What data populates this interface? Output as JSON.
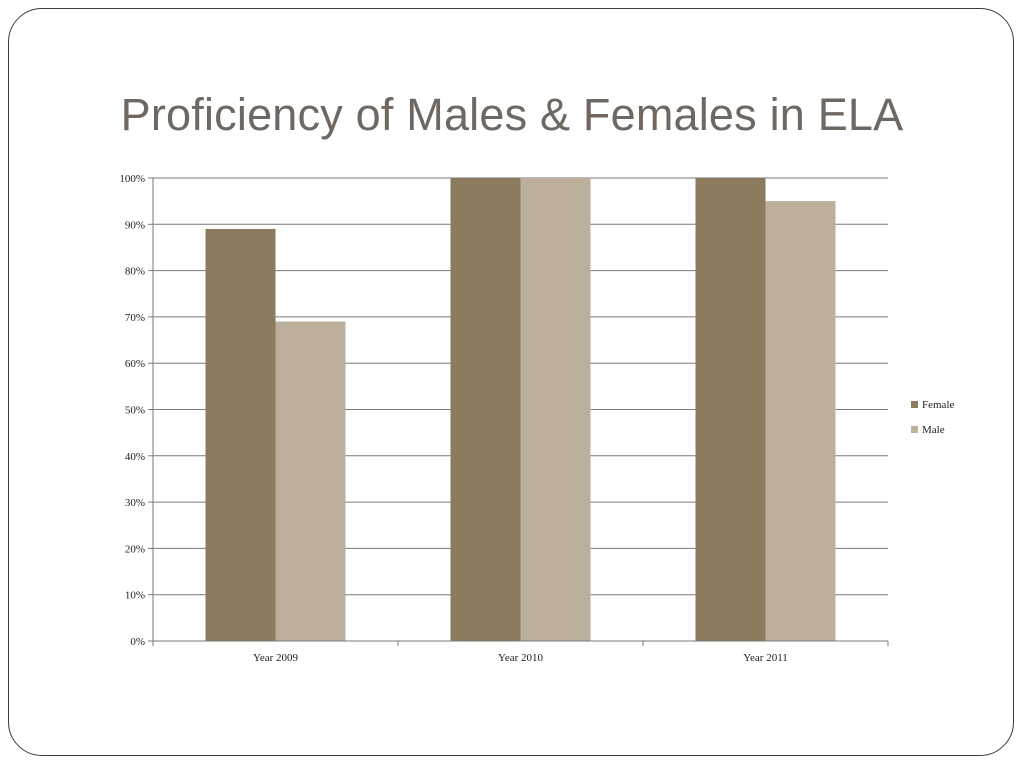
{
  "slide": {
    "title": "Proficiency of Males & Females in ELA"
  },
  "chart_data": {
    "type": "bar",
    "categories": [
      "Year 2009",
      "Year 2010",
      "Year 2011"
    ],
    "series": [
      {
        "name": "Female",
        "values": [
          89,
          100,
          100
        ],
        "color": "#8c7b5c"
      },
      {
        "name": "Male",
        "values": [
          69,
          100,
          95
        ],
        "color": "#bcb09c"
      }
    ],
    "y_ticks": [
      "0%",
      "10%",
      "20%",
      "30%",
      "40%",
      "50%",
      "60%",
      "70%",
      "80%",
      "90%",
      "100%"
    ],
    "ylim": [
      0,
      100
    ],
    "grid": true,
    "legend": "right"
  }
}
